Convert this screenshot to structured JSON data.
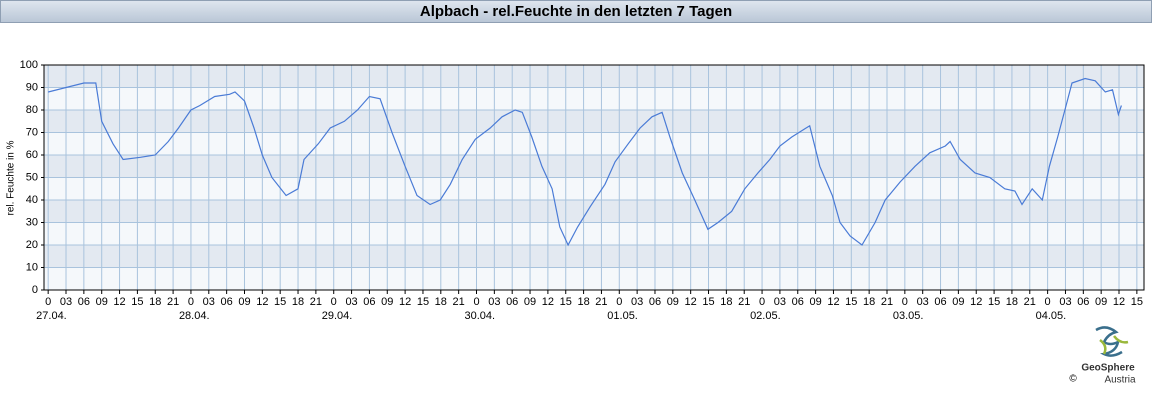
{
  "chart_data": {
    "type": "line",
    "title": "Alpbach - rel.Feuchte in den letzten 7 Tagen",
    "ylabel": "rel. Feuchte in %",
    "x": [
      0,
      6,
      8,
      9,
      10.9,
      12.6,
      15.5,
      18,
      20.2,
      21.9,
      24,
      25.5,
      28,
      30.5,
      31.4,
      33,
      34.6,
      36,
      37.6,
      40,
      42,
      43,
      45.4,
      47.4,
      49.8,
      52,
      54,
      55.8,
      57.8,
      60,
      62,
      64.2,
      65.9,
      67.6,
      69.6,
      71.8,
      74.3,
      76.3,
      78.5,
      79.7,
      81.3,
      83,
      84.7,
      86,
      87.4,
      89,
      91.1,
      93.6,
      95.3,
      97.5,
      99.5,
      101.5,
      103.2,
      104.5,
      106.6,
      108.7,
      110.9,
      112.6,
      114.9,
      117.1,
      119.3,
      121.3,
      123,
      125,
      127.4,
      128,
      129.7,
      131.8,
      133.1,
      134.8,
      136.8,
      139,
      140.7,
      143.2,
      145.7,
      148.2,
      150.8,
      151.6,
      153.3,
      155.8,
      158.3,
      160.8,
      162.5,
      163.7,
      165.4,
      167.1,
      168.3,
      169.7,
      170.9,
      172.1,
      174.3,
      176,
      177.7,
      178.9,
      179.9,
      180.4
    ],
    "values": [
      88,
      92,
      92,
      75,
      65,
      58,
      59,
      60,
      66,
      72,
      80,
      82,
      86,
      87,
      88,
      84,
      72,
      60,
      50,
      42,
      45,
      58,
      65,
      72,
      75,
      80,
      86,
      85,
      70,
      55,
      42,
      38,
      40,
      47,
      58,
      67,
      72,
      77,
      80,
      79,
      68,
      55,
      45,
      28,
      20,
      28,
      37,
      47,
      57,
      65,
      72,
      77,
      79,
      68,
      52,
      40,
      27,
      30,
      35,
      45,
      52,
      58,
      64,
      68,
      72,
      73,
      55,
      42,
      30,
      24,
      20,
      30,
      40,
      48,
      55,
      61,
      64,
      66,
      58,
      52,
      50,
      45,
      44,
      38,
      45,
      40,
      55,
      68,
      80,
      92,
      94,
      93,
      88,
      89,
      78,
      82
    ],
    "color": "#4a7bd6",
    "xlim": [
      -0.7,
      184.2
    ],
    "ylim": [
      0,
      100
    ],
    "yticks": [
      0,
      10,
      20,
      30,
      40,
      50,
      60,
      70,
      80,
      90,
      100
    ],
    "xticks": [
      0,
      {
        "value": 3,
        "label": "03"
      },
      {
        "value": 6,
        "label": "06"
      },
      {
        "value": 9,
        "label": "09"
      },
      12,
      15,
      18,
      21,
      {
        "value": 24,
        "label": "0"
      },
      {
        "value": 27,
        "label": "03"
      },
      {
        "value": 30,
        "label": "06"
      },
      {
        "value": 33,
        "label": "09"
      },
      {
        "value": 36,
        "label": "12"
      },
      {
        "value": 39,
        "label": "15"
      },
      {
        "value": 42,
        "label": "18"
      },
      {
        "value": 45,
        "label": "21"
      },
      {
        "value": 48,
        "label": "0"
      },
      {
        "value": 51,
        "label": "03"
      },
      {
        "value": 54,
        "label": "06"
      },
      {
        "value": 57,
        "label": "09"
      },
      {
        "value": 60,
        "label": "12"
      },
      {
        "value": 63,
        "label": "15"
      },
      {
        "value": 66,
        "label": "18"
      },
      {
        "value": 69,
        "label": "21"
      },
      {
        "value": 72,
        "label": "0"
      },
      {
        "value": 75,
        "label": "03"
      },
      {
        "value": 78,
        "label": "06"
      },
      {
        "value": 81,
        "label": "09"
      },
      {
        "value": 84,
        "label": "12"
      },
      {
        "value": 87,
        "label": "15"
      },
      {
        "value": 90,
        "label": "18"
      },
      {
        "value": 93,
        "label": "21"
      },
      {
        "value": 96,
        "label": "0"
      },
      {
        "value": 99,
        "label": "03"
      },
      {
        "value": 102,
        "label": "06"
      },
      {
        "value": 105,
        "label": "09"
      },
      {
        "value": 108,
        "label": "12"
      },
      {
        "value": 111,
        "label": "15"
      },
      {
        "value": 114,
        "label": "18"
      },
      {
        "value": 117,
        "label": "21"
      },
      {
        "value": 120,
        "label": "0"
      },
      {
        "value": 123,
        "label": "03"
      },
      {
        "value": 126,
        "label": "06"
      },
      {
        "value": 129,
        "label": "09"
      },
      {
        "value": 132,
        "label": "12"
      },
      {
        "value": 135,
        "label": "15"
      },
      {
        "value": 138,
        "label": "18"
      },
      {
        "value": 141,
        "label": "21"
      },
      {
        "value": 144,
        "label": "0"
      },
      {
        "value": 147,
        "label": "03"
      },
      {
        "value": 150,
        "label": "06"
      },
      {
        "value": 153,
        "label": "09"
      },
      {
        "value": 156,
        "label": "12"
      },
      {
        "value": 159,
        "label": "15"
      },
      {
        "value": 162,
        "label": "18"
      },
      {
        "value": 165,
        "label": "21"
      },
      {
        "value": 168,
        "label": "0"
      },
      {
        "value": 171,
        "label": "03"
      },
      {
        "value": 174,
        "label": "06"
      },
      {
        "value": 177,
        "label": "09"
      },
      {
        "value": 180,
        "label": "12"
      },
      {
        "value": 183,
        "label": "15"
      }
    ],
    "xdates": [
      {
        "value": 0,
        "label": "27.04."
      },
      {
        "value": 24,
        "label": "28.04."
      },
      {
        "value": 48,
        "label": "29.04."
      },
      {
        "value": 72,
        "label": "30.04."
      },
      {
        "value": 96,
        "label": "01.05."
      },
      {
        "value": 120,
        "label": "02.05."
      },
      {
        "value": 144,
        "label": "03.05."
      },
      {
        "value": 168,
        "label": "04.05."
      }
    ],
    "grid": true
  },
  "logo": {
    "name": "GeoSphere",
    "sub": "Austria",
    "copyright": "©"
  }
}
